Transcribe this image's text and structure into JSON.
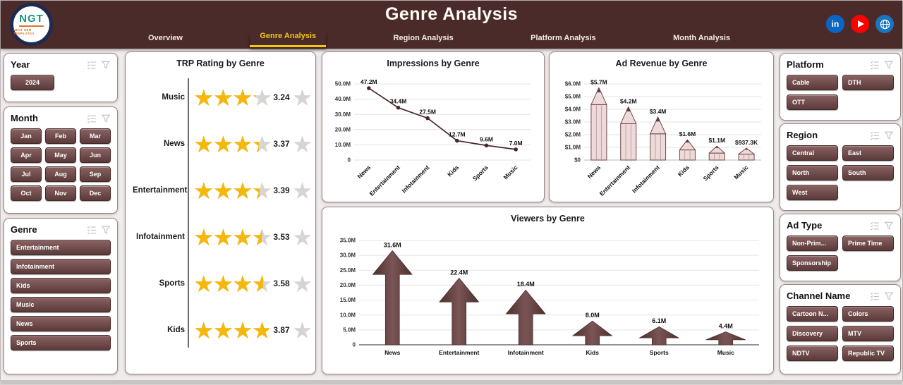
{
  "colors": {
    "header_bg": "#4b2a2a",
    "accent": "#f2c811",
    "btn_top": "#8a6262",
    "btn_bottom": "#5b3a3a",
    "btn_border": "#432727",
    "chart_dark": "#4a2626",
    "pencil_fill": "#eedada",
    "pencil_stroke": "#6f4747",
    "arrow_fill": "#5a3434",
    "star_gold": "#f5b70a",
    "star_gray": "#d8d4d4",
    "linkedin": "#0a66c2",
    "youtube": "#ff0000",
    "globe": "#1b75bb"
  },
  "header": {
    "title": "Genre Analysis",
    "logo_text": "NGT",
    "logo_tagline": "NEXT GEN TEMPLATES",
    "tabs": [
      {
        "label": "Overview",
        "active": false
      },
      {
        "label": "Genre Analysis",
        "active": true
      },
      {
        "label": "Region Analysis",
        "active": false
      },
      {
        "label": "Platform Analysis",
        "active": false
      },
      {
        "label": "Month Analysis",
        "active": false
      }
    ],
    "social": [
      {
        "name": "linkedin",
        "glyph": "in"
      },
      {
        "name": "youtube"
      },
      {
        "name": "globe"
      }
    ]
  },
  "filters": {
    "year": {
      "title": "Year",
      "options": [
        "2024"
      ]
    },
    "month": {
      "title": "Month",
      "options": [
        "Jan",
        "Feb",
        "Mar",
        "Apr",
        "May",
        "Jun",
        "Jul",
        "Aug",
        "Sep",
        "Oct",
        "Nov",
        "Dec"
      ]
    },
    "genre": {
      "title": "Genre",
      "options": [
        "Entertainment",
        "Infotainment",
        "Kids",
        "Music",
        "News",
        "Sports"
      ]
    },
    "platform": {
      "title": "Platform",
      "options": [
        "Cable",
        "DTH",
        "OTT"
      ]
    },
    "region": {
      "title": "Region",
      "options": [
        "Central",
        "East",
        "North",
        "South",
        "West"
      ]
    },
    "ad_type": {
      "title": "Ad Type",
      "options": [
        "Non-Prim...",
        "Prime Time",
        "Sponsorship"
      ]
    },
    "channel": {
      "title": "Channel Name",
      "options": [
        "Cartoon N...",
        "Colors",
        "Discovery",
        "MTV",
        "NDTV",
        "Republic TV"
      ]
    }
  },
  "chart_data": [
    {
      "type": "rating",
      "title": "TRP Rating by Genre",
      "star_glyph": "★",
      "max": 5,
      "categories": [
        "Music",
        "News",
        "Entertainment",
        "Infotainment",
        "Sports",
        "Kids"
      ],
      "values": [
        3.24,
        3.37,
        3.39,
        3.53,
        3.58,
        3.87
      ]
    },
    {
      "type": "line",
      "title": "Impressions by Genre",
      "categories": [
        "News",
        "Entertainment",
        "Infotainment",
        "Kids",
        "Sports",
        "Music"
      ],
      "values": [
        47.2,
        34.4,
        27.5,
        12.7,
        9.6,
        7.0
      ],
      "labels": [
        "47.2M",
        "34.4M",
        "27.5M",
        "12.7M",
        "9.6M",
        "7.0M"
      ],
      "ylim": [
        0,
        50
      ],
      "yticks": [
        "50.0M",
        "40.0M",
        "30.0M",
        "20.0M",
        "10.0M",
        "0"
      ],
      "grid": true
    },
    {
      "type": "bar",
      "bar_shape": "pencil",
      "title": "Ad Revenue by Genre",
      "categories": [
        "News",
        "Entertainment",
        "Infotainment",
        "Kids",
        "Sports",
        "Music"
      ],
      "values": [
        5.7,
        4.2,
        3.4,
        1.6,
        1.1,
        0.9373
      ],
      "labels": [
        "$5.7M",
        "$4.2M",
        "$3.4M",
        "$1.6M",
        "$1.1M",
        "$937.3K"
      ],
      "ylim": [
        0,
        6
      ],
      "yticks": [
        "$6.0M",
        "$5.0M",
        "$4.0M",
        "$3.0M",
        "$2.0M",
        "$1.0M",
        "$0"
      ],
      "grid": true
    },
    {
      "type": "bar",
      "bar_shape": "arrow",
      "title": "Viewers by Genre",
      "categories": [
        "News",
        "Entertainment",
        "Infotainment",
        "Kids",
        "Sports",
        "Music"
      ],
      "values": [
        31.6,
        22.4,
        18.4,
        8.0,
        6.1,
        4.4
      ],
      "labels": [
        "31.6M",
        "22.4M",
        "18.4M",
        "8.0M",
        "6.1M",
        "4.4M"
      ],
      "ylim": [
        0,
        35
      ],
      "yticks": [
        "35.0M",
        "30.0M",
        "25.0M",
        "20.0M",
        "15.0M",
        "10.0M",
        "5.0M",
        "0"
      ],
      "grid": true
    }
  ]
}
